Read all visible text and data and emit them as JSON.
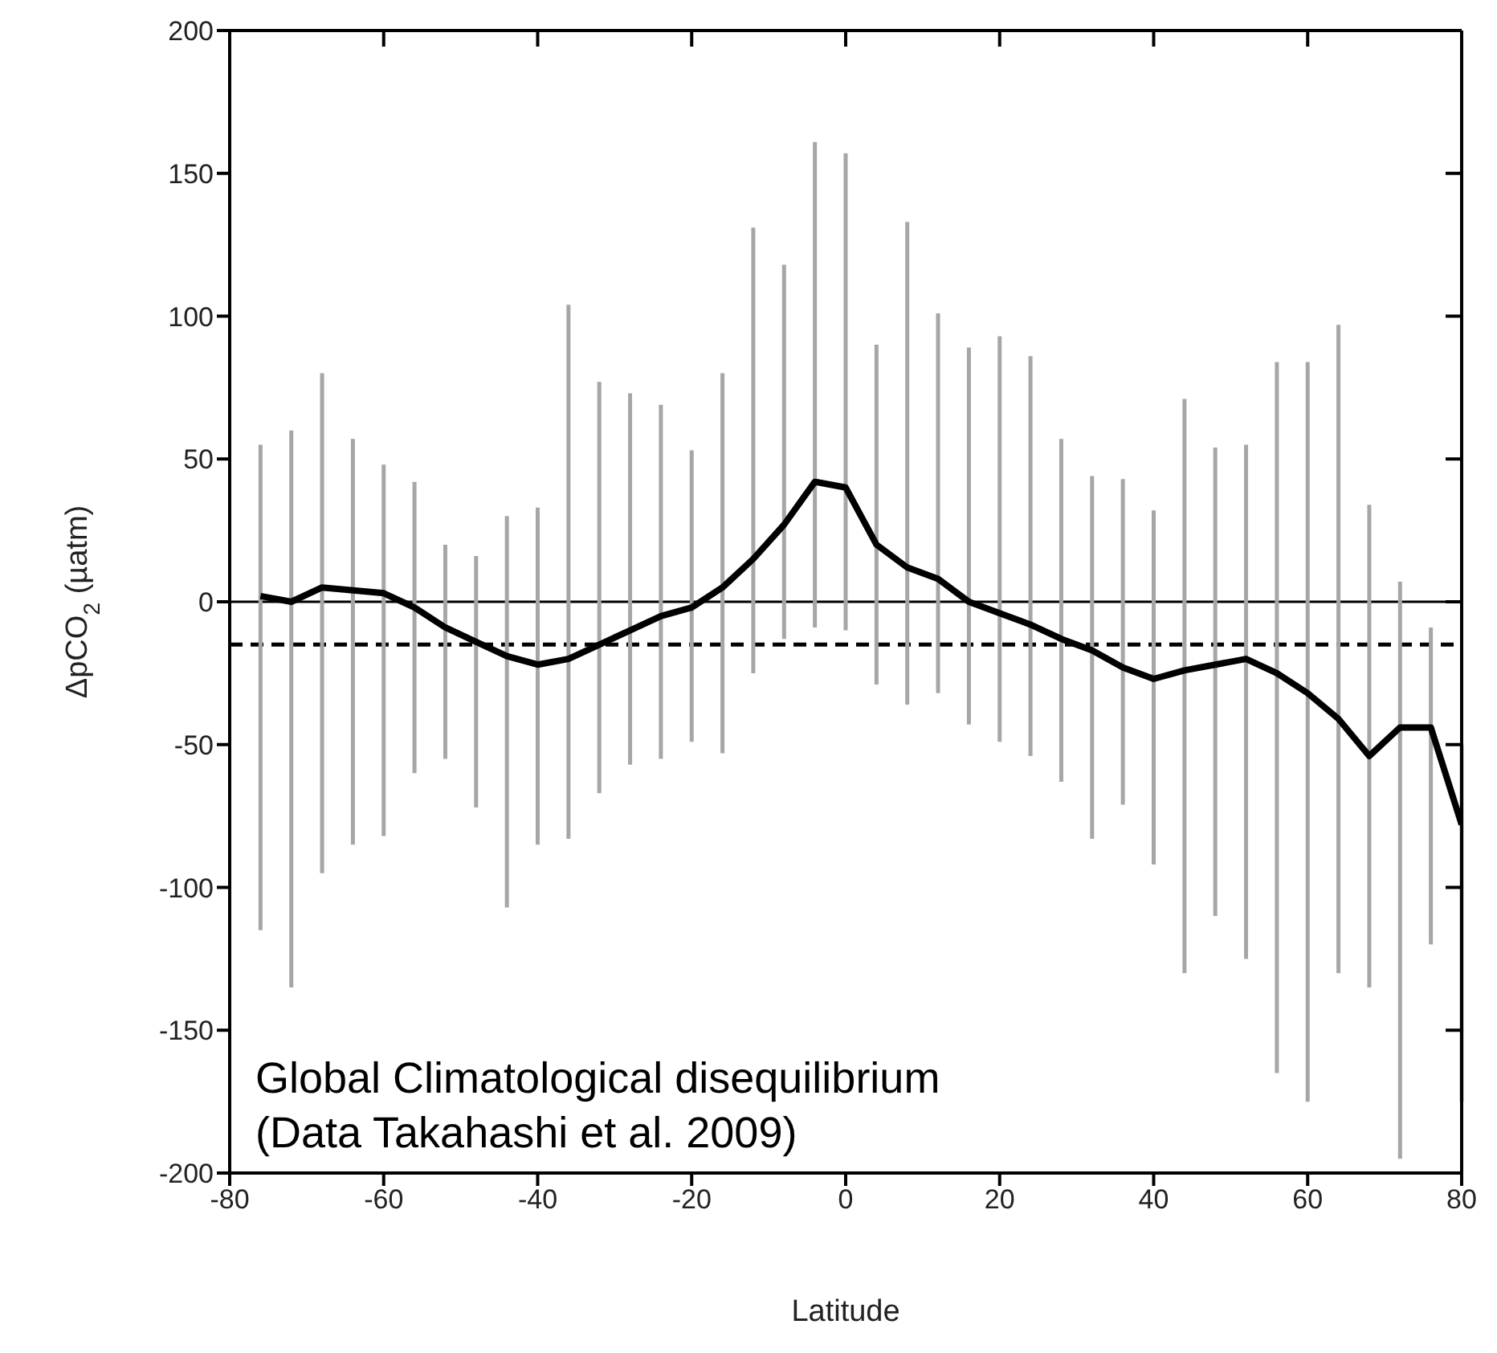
{
  "chart_data": {
    "type": "line",
    "xlabel": "Latitude",
    "ylabel": "ΔpCO$_{2}$ (µatm)",
    "x": [
      -76,
      -72,
      -68,
      -64,
      -60,
      -56,
      -52,
      -48,
      -44,
      -40,
      -36,
      -32,
      -28,
      -24,
      -20,
      -16,
      -12,
      -8,
      -4,
      0,
      4,
      8,
      12,
      16,
      20,
      24,
      28,
      32,
      36,
      40,
      44,
      48,
      52,
      56,
      60,
      64,
      68,
      72,
      76,
      80
    ],
    "series": [
      {
        "color": "#000000",
        "values": [
          2,
          0,
          5,
          4,
          3,
          -2,
          -9,
          -14,
          -19,
          -22,
          -20,
          -15,
          -10,
          -5,
          -2,
          5,
          15,
          27,
          42,
          40,
          20,
          12,
          8,
          0,
          -4,
          -8,
          -13,
          -17,
          -23,
          -27,
          -24,
          -22,
          -20,
          -25,
          -32,
          -41,
          -54,
          -44,
          -44,
          -78
        ],
        "errors": [
          [
            -115,
            55
          ],
          [
            -135,
            60
          ],
          [
            -95,
            80
          ],
          [
            -85,
            57
          ],
          [
            -82,
            48
          ],
          [
            -60,
            42
          ],
          [
            -55,
            20
          ],
          [
            -72,
            16
          ],
          [
            -107,
            30
          ],
          [
            -85,
            33
          ],
          [
            -83,
            104
          ],
          [
            -67,
            77
          ],
          [
            -57,
            73
          ],
          [
            -55,
            69
          ],
          [
            -49,
            53
          ],
          [
            -53,
            80
          ],
          [
            -25,
            131
          ],
          [
            -13,
            118
          ],
          [
            -9,
            161
          ],
          [
            -10,
            157
          ],
          [
            -29,
            90
          ],
          [
            -36,
            133
          ],
          [
            -32,
            101
          ],
          [
            -43,
            89
          ],
          [
            -49,
            93
          ],
          [
            -54,
            86
          ],
          [
            -63,
            57
          ],
          [
            -83,
            44
          ],
          [
            -71,
            43
          ],
          [
            -92,
            32
          ],
          [
            -130,
            71
          ],
          [
            -110,
            54
          ],
          [
            -125,
            55
          ],
          [
            -165,
            84
          ],
          [
            -175,
            84
          ],
          [
            -130,
            97
          ],
          [
            -135,
            34
          ],
          [
            -195,
            7
          ],
          [
            -120,
            -9
          ],
          [
            -175,
            -50
          ]
        ]
      }
    ],
    "xlim": [
      -80,
      80
    ],
    "xticks": [
      -80,
      -60,
      -40,
      -20,
      0,
      20,
      40,
      60,
      80
    ],
    "ylim": [
      -200,
      200
    ],
    "yticks": [
      -200,
      -150,
      -100,
      -50,
      0,
      50,
      100,
      150,
      200
    ],
    "ref_lines": [
      {
        "axis": "y",
        "value": 0,
        "line_style": "solid",
        "color": "#000000"
      },
      {
        "axis": "y",
        "value": -15,
        "line_style": "dashed",
        "color": "#000000"
      }
    ],
    "annotations": [
      "Global Climatological disequilibrium",
      "(Data Takahashi et al. 2009)"
    ],
    "grid": false,
    "legend": false,
    "marker": "none",
    "line_style": "solid"
  }
}
